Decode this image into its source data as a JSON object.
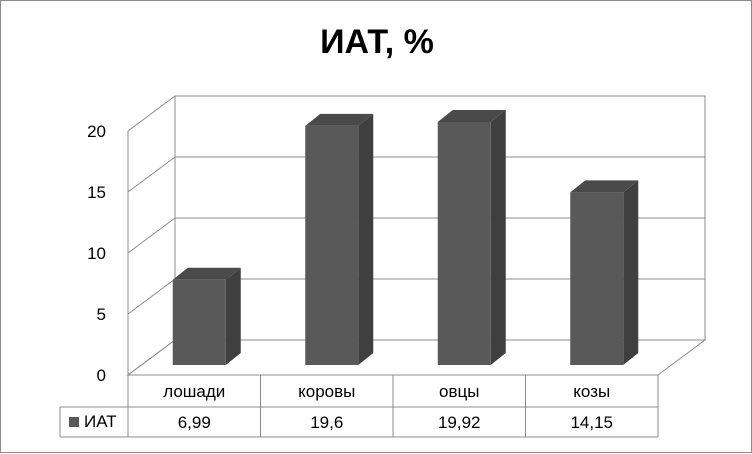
{
  "chart_data": {
    "type": "bar",
    "title": "ИАТ, %",
    "categories": [
      "лошади",
      "коровы",
      "овцы",
      "козы"
    ],
    "series": [
      {
        "name": "ИАТ",
        "values": [
          6.99,
          19.6,
          19.92,
          14.15
        ],
        "value_labels": [
          "6,99",
          "19,6",
          "19,92",
          "14,15"
        ],
        "color": "#595959"
      }
    ],
    "yticks": [
      "0",
      "5",
      "10",
      "15",
      "20"
    ],
    "ylim": [
      0,
      20
    ],
    "grid": true,
    "style": "3d-column",
    "data_table": true
  }
}
